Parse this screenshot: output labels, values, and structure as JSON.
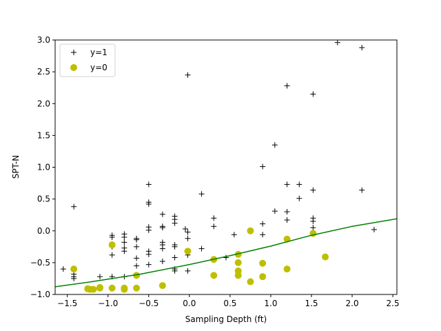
{
  "chart_data": {
    "type": "scatter",
    "xlabel": "Sampling Depth (ft)",
    "ylabel": "SPT-N",
    "xlim": [
      -1.65,
      2.55
    ],
    "ylim": [
      -1.0,
      3.0
    ],
    "xticks": [
      -1.5,
      -1.0,
      -0.5,
      0.0,
      0.5,
      1.0,
      1.5,
      2.0,
      2.5
    ],
    "xtick_labels": [
      "−1.5",
      "−1.0",
      "−0.5",
      "0.0",
      "0.5",
      "1.0",
      "1.5",
      "2.0",
      "2.5"
    ],
    "yticks": [
      -1.0,
      -0.5,
      0.0,
      0.5,
      1.0,
      1.5,
      2.0,
      2.5,
      3.0
    ],
    "ytick_labels": [
      "−1.0",
      "−0.5",
      "0.0",
      "0.5",
      "1.0",
      "1.5",
      "2.0",
      "2.5",
      "3.0"
    ],
    "grid": false,
    "legend_position": "top-left",
    "series": [
      {
        "name": "y=1",
        "marker": "plus",
        "color": "#000000",
        "points": [
          [
            -1.55,
            -0.6
          ],
          [
            -1.42,
            0.38
          ],
          [
            -1.42,
            -0.68
          ],
          [
            -1.42,
            -0.72
          ],
          [
            -1.42,
            -0.75
          ],
          [
            -1.1,
            -0.72
          ],
          [
            -0.95,
            -0.07
          ],
          [
            -0.95,
            -0.1
          ],
          [
            -0.95,
            -0.25
          ],
          [
            -0.95,
            -0.38
          ],
          [
            -0.95,
            -0.72
          ],
          [
            -0.8,
            -0.05
          ],
          [
            -0.8,
            -0.1
          ],
          [
            -0.8,
            -0.18
          ],
          [
            -0.8,
            -0.27
          ],
          [
            -0.8,
            -0.32
          ],
          [
            -0.8,
            -0.72
          ],
          [
            -0.65,
            -0.12
          ],
          [
            -0.65,
            -0.14
          ],
          [
            -0.65,
            -0.25
          ],
          [
            -0.65,
            -0.43
          ],
          [
            -0.65,
            -0.55
          ],
          [
            -0.5,
            0.73
          ],
          [
            -0.5,
            0.45
          ],
          [
            -0.5,
            0.42
          ],
          [
            -0.5,
            0.06
          ],
          [
            -0.5,
            0.01
          ],
          [
            -0.5,
            -0.32
          ],
          [
            -0.5,
            -0.37
          ],
          [
            -0.5,
            -0.53
          ],
          [
            -0.33,
            0.26
          ],
          [
            -0.33,
            0.07
          ],
          [
            -0.33,
            0.05
          ],
          [
            -0.33,
            -0.18
          ],
          [
            -0.33,
            -0.22
          ],
          [
            -0.33,
            -0.28
          ],
          [
            -0.33,
            -0.48
          ],
          [
            -0.18,
            0.23
          ],
          [
            -0.18,
            0.18
          ],
          [
            -0.18,
            0.12
          ],
          [
            -0.18,
            -0.22
          ],
          [
            -0.18,
            -0.25
          ],
          [
            -0.18,
            -0.42
          ],
          [
            -0.18,
            -0.6
          ],
          [
            -0.18,
            -0.63
          ],
          [
            -0.05,
            0.03
          ],
          [
            -0.02,
            2.45
          ],
          [
            -0.02,
            -0.02
          ],
          [
            -0.02,
            -0.12
          ],
          [
            -0.02,
            -0.38
          ],
          [
            -0.02,
            -0.63
          ],
          [
            0.15,
            0.58
          ],
          [
            0.15,
            -0.28
          ],
          [
            0.3,
            0.2
          ],
          [
            0.3,
            0.07
          ],
          [
            0.3,
            -0.45
          ],
          [
            0.45,
            -0.42
          ],
          [
            0.55,
            -0.06
          ],
          [
            0.9,
            1.01
          ],
          [
            0.9,
            0.11
          ],
          [
            0.9,
            -0.06
          ],
          [
            1.05,
            1.35
          ],
          [
            1.05,
            0.31
          ],
          [
            1.2,
            2.28
          ],
          [
            1.2,
            0.73
          ],
          [
            1.2,
            0.3
          ],
          [
            1.2,
            0.17
          ],
          [
            1.35,
            0.73
          ],
          [
            1.35,
            0.51
          ],
          [
            1.52,
            2.15
          ],
          [
            1.52,
            0.64
          ],
          [
            1.52,
            0.2
          ],
          [
            1.52,
            0.15
          ],
          [
            1.52,
            0.05
          ],
          [
            1.82,
            2.96
          ],
          [
            2.12,
            2.88
          ],
          [
            2.12,
            0.64
          ],
          [
            2.27,
            0.02
          ]
        ]
      },
      {
        "name": "y=0",
        "marker": "circle",
        "color": "#bfbf00",
        "points": [
          [
            -1.42,
            -0.6
          ],
          [
            -1.25,
            -0.91
          ],
          [
            -1.22,
            -0.92
          ],
          [
            -1.18,
            -0.92
          ],
          [
            -1.1,
            -0.89
          ],
          [
            -1.1,
            -0.9
          ],
          [
            -0.95,
            -0.22
          ],
          [
            -0.95,
            -0.9
          ],
          [
            -0.8,
            -0.9
          ],
          [
            -0.8,
            -0.92
          ],
          [
            -0.65,
            -0.7
          ],
          [
            -0.65,
            -0.9
          ],
          [
            -0.33,
            -0.86
          ],
          [
            -0.02,
            -0.32
          ],
          [
            0.3,
            -0.45
          ],
          [
            0.3,
            -0.7
          ],
          [
            0.6,
            -0.37
          ],
          [
            0.6,
            -0.5
          ],
          [
            0.6,
            -0.63
          ],
          [
            0.6,
            -0.7
          ],
          [
            0.75,
            0.0
          ],
          [
            0.75,
            -0.8
          ],
          [
            0.9,
            -0.51
          ],
          [
            0.9,
            -0.72
          ],
          [
            1.2,
            -0.13
          ],
          [
            1.2,
            -0.6
          ],
          [
            1.52,
            -0.04
          ],
          [
            1.67,
            -0.41
          ]
        ]
      },
      {
        "name": "",
        "type": "line",
        "color": "#008000",
        "points": [
          [
            -1.65,
            -0.88
          ],
          [
            -1.2,
            -0.8
          ],
          [
            -0.6,
            -0.68
          ],
          [
            0.0,
            -0.53
          ],
          [
            0.5,
            -0.39
          ],
          [
            1.0,
            -0.24
          ],
          [
            1.5,
            -0.07
          ],
          [
            2.0,
            0.07
          ],
          [
            2.55,
            0.19
          ]
        ]
      }
    ]
  }
}
